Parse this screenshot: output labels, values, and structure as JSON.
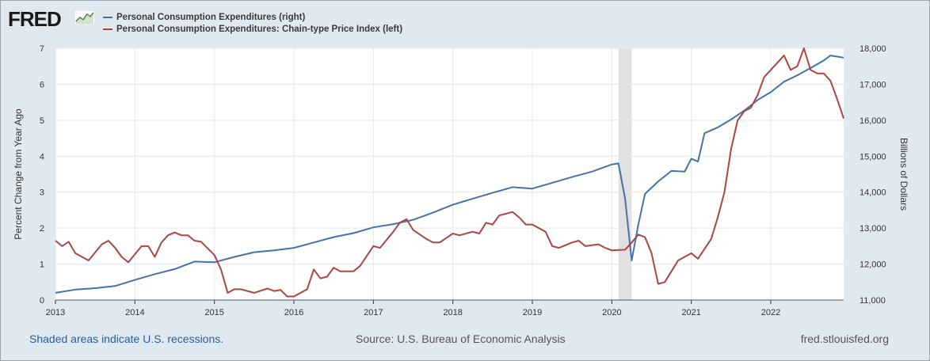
{
  "brand": {
    "logo_text": "FRED"
  },
  "chart_data": {
    "type": "line",
    "title": "",
    "legend_position": "top-left",
    "x_range": [
      "2013-01",
      "2022-12"
    ],
    "x_tick_labels": [
      "2013",
      "2014",
      "2015",
      "2016",
      "2017",
      "2018",
      "2019",
      "2020",
      "2021",
      "2022"
    ],
    "ylabel_left": "Percent Change from Year Ago",
    "ylabel_right": "Billions of Dollars",
    "ylim_left": [
      0,
      7
    ],
    "ylim_right": [
      11000,
      18000
    ],
    "y_ticks_left": [
      "0",
      "1",
      "2",
      "3",
      "4",
      "5",
      "6",
      "7"
    ],
    "y_ticks_right": [
      "11,000",
      "12,000",
      "13,000",
      "14,000",
      "15,000",
      "16,000",
      "17,000",
      "18,000"
    ],
    "grid": true,
    "recession_shading": [
      {
        "start": "2020-02",
        "end": "2020-04",
        "color": "#e1e1e1"
      }
    ],
    "series": [
      {
        "name": "Personal Consumption Expenditures (right)",
        "axis": "right",
        "color": "#4572a7",
        "points": [
          [
            "2013-01",
            11200
          ],
          [
            "2013-04",
            11290
          ],
          [
            "2013-07",
            11330
          ],
          [
            "2013-10",
            11390
          ],
          [
            "2014-01",
            11560
          ],
          [
            "2014-04",
            11720
          ],
          [
            "2014-07",
            11860
          ],
          [
            "2014-10",
            12070
          ],
          [
            "2015-01",
            12050
          ],
          [
            "2015-04",
            12200
          ],
          [
            "2015-07",
            12330
          ],
          [
            "2015-10",
            12380
          ],
          [
            "2016-01",
            12450
          ],
          [
            "2016-04",
            12600
          ],
          [
            "2016-07",
            12750
          ],
          [
            "2016-10",
            12860
          ],
          [
            "2017-01",
            13020
          ],
          [
            "2017-04",
            13110
          ],
          [
            "2017-07",
            13230
          ],
          [
            "2017-10",
            13430
          ],
          [
            "2018-01",
            13650
          ],
          [
            "2018-04",
            13820
          ],
          [
            "2018-07",
            13980
          ],
          [
            "2018-10",
            14140
          ],
          [
            "2019-01",
            14100
          ],
          [
            "2019-04",
            14260
          ],
          [
            "2019-07",
            14420
          ],
          [
            "2019-10",
            14570
          ],
          [
            "2020-01",
            14770
          ],
          [
            "2020-02",
            14800
          ],
          [
            "2020-03",
            13820
          ],
          [
            "2020-04",
            12100
          ],
          [
            "2020-05",
            13100
          ],
          [
            "2020-06",
            13950
          ],
          [
            "2020-08",
            14300
          ],
          [
            "2020-10",
            14590
          ],
          [
            "2020-12",
            14570
          ],
          [
            "2021-01",
            14930
          ],
          [
            "2021-02",
            14850
          ],
          [
            "2021-03",
            15640
          ],
          [
            "2021-05",
            15800
          ],
          [
            "2021-07",
            16020
          ],
          [
            "2021-09",
            16270
          ],
          [
            "2021-11",
            16560
          ],
          [
            "2022-01",
            16780
          ],
          [
            "2022-03",
            17070
          ],
          [
            "2022-05",
            17250
          ],
          [
            "2022-07",
            17450
          ],
          [
            "2022-09",
            17660
          ],
          [
            "2022-10",
            17800
          ],
          [
            "2022-12",
            17740
          ]
        ]
      },
      {
        "name": "Personal Consumption Expenditures: Chain-type Price Index (left)",
        "axis": "left",
        "color": "#aa4643",
        "points": [
          [
            "2013-01",
            1.65
          ],
          [
            "2013-02",
            1.5
          ],
          [
            "2013-03",
            1.62
          ],
          [
            "2013-04",
            1.3
          ],
          [
            "2013-06",
            1.1
          ],
          [
            "2013-08",
            1.55
          ],
          [
            "2013-09",
            1.65
          ],
          [
            "2013-10",
            1.45
          ],
          [
            "2013-11",
            1.2
          ],
          [
            "2013-12",
            1.05
          ],
          [
            "2014-02",
            1.5
          ],
          [
            "2014-03",
            1.5
          ],
          [
            "2014-04",
            1.2
          ],
          [
            "2014-05",
            1.6
          ],
          [
            "2014-06",
            1.8
          ],
          [
            "2014-07",
            1.88
          ],
          [
            "2014-08",
            1.8
          ],
          [
            "2014-09",
            1.8
          ],
          [
            "2014-10",
            1.65
          ],
          [
            "2014-11",
            1.62
          ],
          [
            "2015-01",
            1.25
          ],
          [
            "2015-02",
            0.85
          ],
          [
            "2015-03",
            0.2
          ],
          [
            "2015-04",
            0.3
          ],
          [
            "2015-05",
            0.3
          ],
          [
            "2015-07",
            0.2
          ],
          [
            "2015-09",
            0.32
          ],
          [
            "2015-10",
            0.25
          ],
          [
            "2015-11",
            0.28
          ],
          [
            "2015-12",
            0.1
          ],
          [
            "2016-01",
            0.1
          ],
          [
            "2016-03",
            0.3
          ],
          [
            "2016-04",
            0.85
          ],
          [
            "2016-05",
            0.6
          ],
          [
            "2016-06",
            0.65
          ],
          [
            "2016-07",
            0.9
          ],
          [
            "2016-08",
            0.8
          ],
          [
            "2016-10",
            0.8
          ],
          [
            "2016-11",
            0.95
          ],
          [
            "2017-01",
            1.5
          ],
          [
            "2017-02",
            1.45
          ],
          [
            "2017-04",
            1.9
          ],
          [
            "2017-05",
            2.15
          ],
          [
            "2017-06",
            2.25
          ],
          [
            "2017-07",
            1.95
          ],
          [
            "2017-09",
            1.7
          ],
          [
            "2017-10",
            1.6
          ],
          [
            "2017-11",
            1.6
          ],
          [
            "2018-01",
            1.85
          ],
          [
            "2018-02",
            1.8
          ],
          [
            "2018-04",
            1.9
          ],
          [
            "2018-05",
            1.85
          ],
          [
            "2018-06",
            2.15
          ],
          [
            "2018-07",
            2.1
          ],
          [
            "2018-08",
            2.35
          ],
          [
            "2018-10",
            2.45
          ],
          [
            "2018-11",
            2.3
          ],
          [
            "2018-12",
            2.1
          ],
          [
            "2019-01",
            2.1
          ],
          [
            "2019-03",
            1.9
          ],
          [
            "2019-04",
            1.5
          ],
          [
            "2019-05",
            1.45
          ],
          [
            "2019-07",
            1.6
          ],
          [
            "2019-08",
            1.65
          ],
          [
            "2019-09",
            1.5
          ],
          [
            "2019-11",
            1.55
          ],
          [
            "2019-12",
            1.45
          ],
          [
            "2020-01",
            1.38
          ],
          [
            "2020-03",
            1.4
          ],
          [
            "2020-04",
            1.6
          ],
          [
            "2020-05",
            1.82
          ],
          [
            "2020-06",
            1.75
          ],
          [
            "2020-07",
            1.3
          ],
          [
            "2020-08",
            0.45
          ],
          [
            "2020-09",
            0.5
          ],
          [
            "2020-10",
            0.8
          ],
          [
            "2020-11",
            1.1
          ],
          [
            "2020-12",
            1.2
          ],
          [
            "2021-01",
            1.3
          ],
          [
            "2021-02",
            1.15
          ],
          [
            "2021-04",
            1.7
          ],
          [
            "2021-05",
            2.3
          ],
          [
            "2021-06",
            3.0
          ],
          [
            "2021-07",
            4.2
          ],
          [
            "2021-08",
            5.0
          ],
          [
            "2021-09",
            5.25
          ],
          [
            "2021-10",
            5.35
          ],
          [
            "2021-11",
            5.7
          ],
          [
            "2021-12",
            6.2
          ],
          [
            "2022-01",
            6.4
          ],
          [
            "2022-02",
            6.6
          ],
          [
            "2022-03",
            6.8
          ],
          [
            "2022-04",
            6.4
          ],
          [
            "2022-05",
            6.5
          ],
          [
            "2022-06",
            7.0
          ],
          [
            "2022-07",
            6.4
          ],
          [
            "2022-08",
            6.3
          ],
          [
            "2022-09",
            6.3
          ],
          [
            "2022-10",
            6.1
          ],
          [
            "2022-11",
            5.6
          ],
          [
            "2022-12",
            5.05
          ]
        ]
      }
    ]
  },
  "footer": {
    "left": "Shaded areas indicate U.S. recessions.",
    "source": "Source: U.S. Bureau of Economic Analysis",
    "url": "fred.stlouisfed.org"
  }
}
